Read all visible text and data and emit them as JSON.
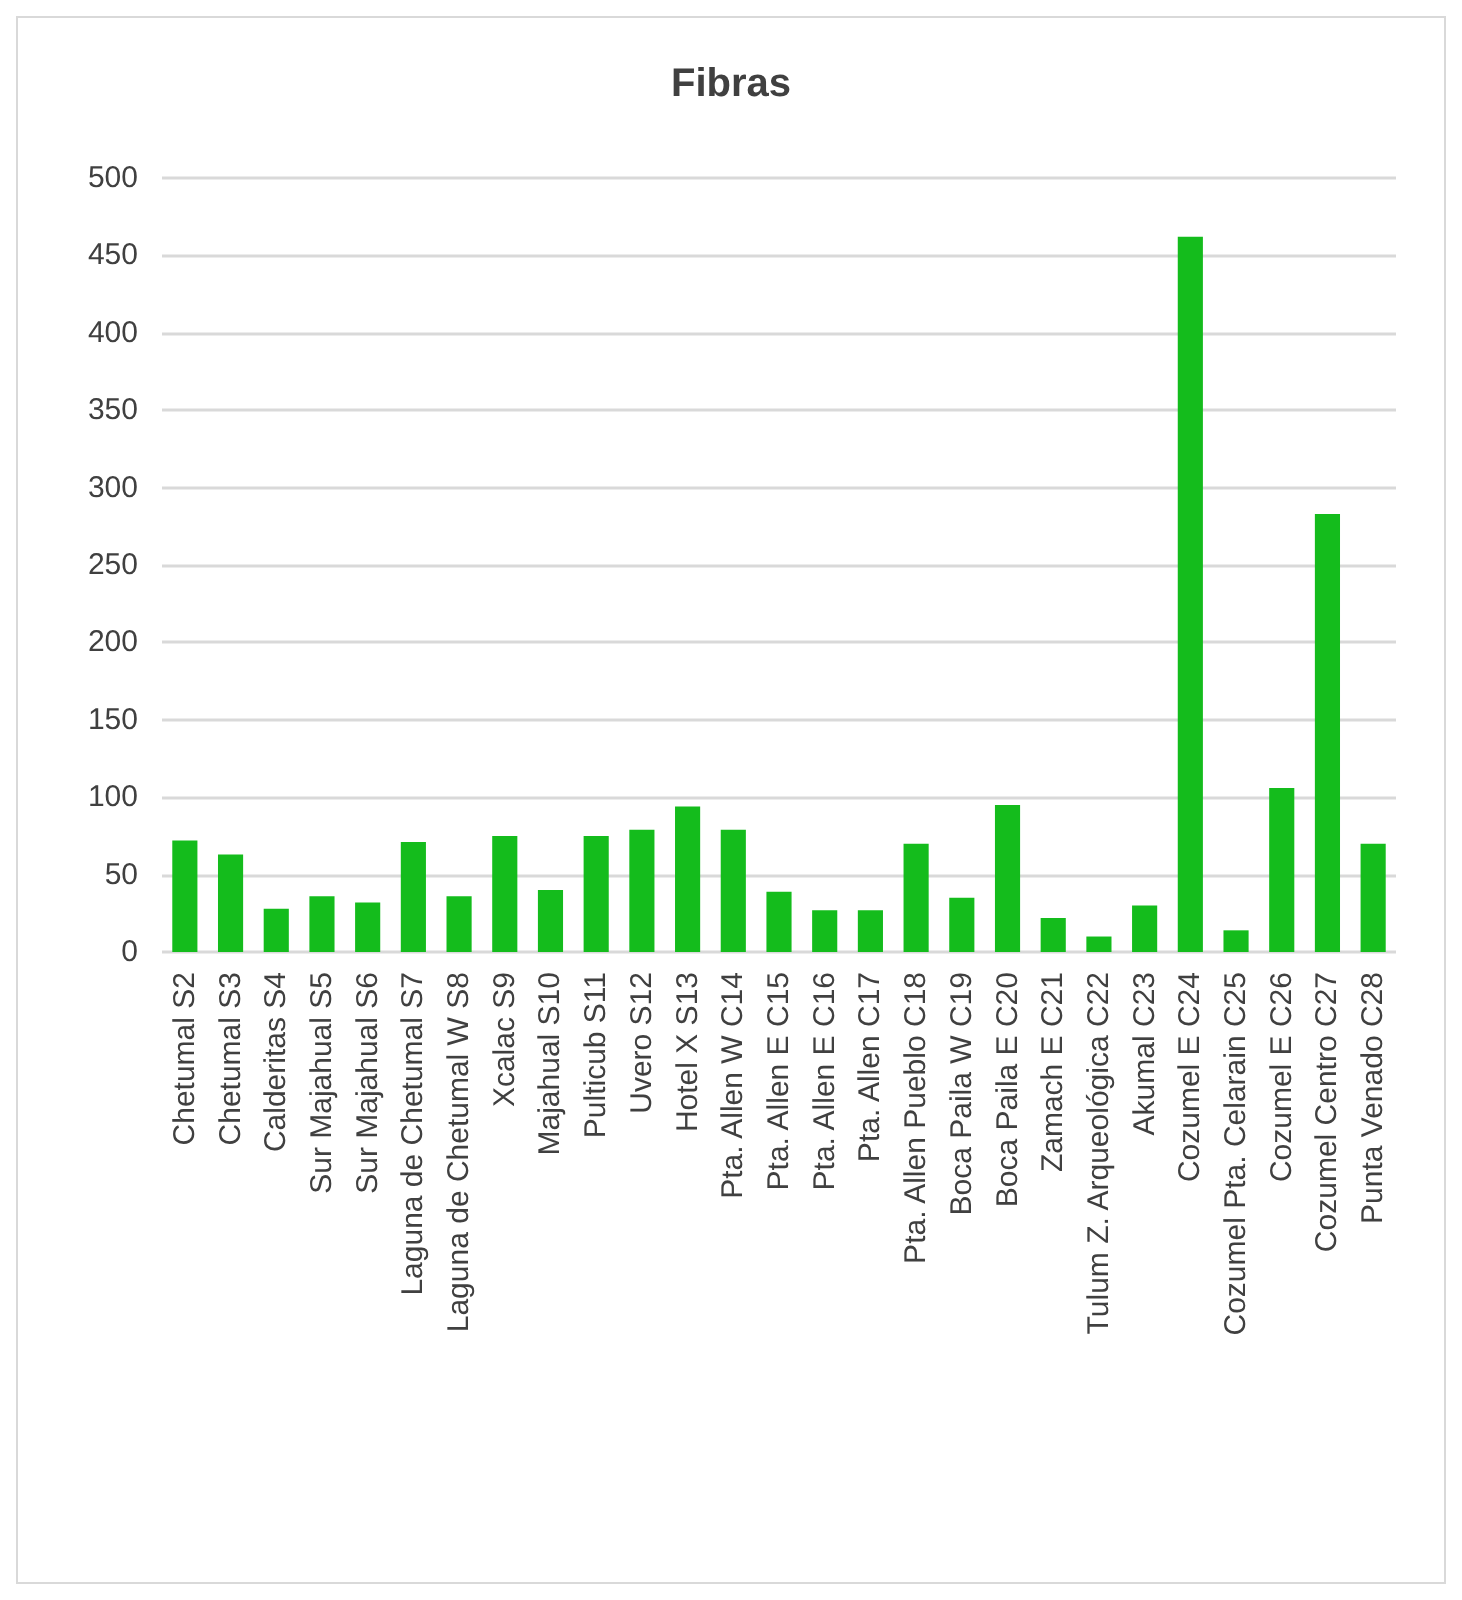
{
  "chart_data": {
    "type": "bar",
    "title": "Fibras",
    "categories": [
      "Chetumal S2",
      "Chetumal S3",
      "Calderitas S4",
      "Sur Majahual S5",
      "Sur Majahual S6",
      "Laguna de Chetumal S7",
      "Laguna de Chetumal W S8",
      "Xcalac S9",
      "Majahual S10",
      "Pulticub S11",
      "Uvero S12",
      "Hotel X S13",
      "Pta. Allen W C14",
      "Pta. Allen E C15",
      "Pta. Allen E C16",
      "Pta. Allen C17",
      "Pta. Allen Pueblo C18",
      "Boca Paila W C19",
      "Boca Paila E C20",
      "Zamach E C21",
      "Tulum Z. Arqueológica C22",
      "Akumal C23",
      "Cozumel E C24",
      "Cozumel Pta. Celarain C25",
      "Cozumel E C26",
      "Cozumel Centro C27",
      "Punta Venado C28"
    ],
    "values": [
      72,
      63,
      28,
      36,
      32,
      71,
      36,
      75,
      40,
      75,
      79,
      94,
      79,
      39,
      27,
      27,
      70,
      35,
      95,
      22,
      10,
      30,
      462,
      14,
      106,
      283,
      70
    ],
    "color": "#14bc1c",
    "ylim": [
      0,
      500
    ],
    "yticks": [
      0,
      50,
      100,
      150,
      200,
      250,
      300,
      350,
      400,
      450,
      500
    ],
    "grid": "y"
  }
}
